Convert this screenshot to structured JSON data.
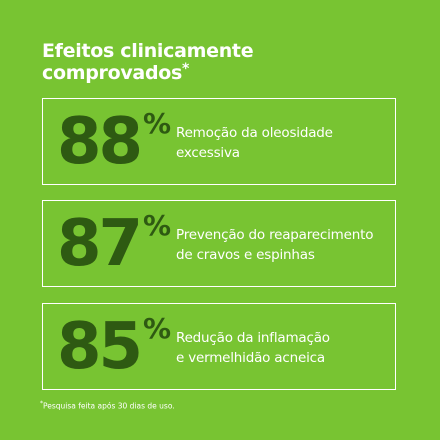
{
  "header": {
    "title_lines": [
      "Efeitos clinicamente",
      "comprovados"
    ],
    "title_mark": "*"
  },
  "stats": [
    {
      "value": 88,
      "unit": "%",
      "lines": [
        "Remoção da oleosidade",
        "excessiva"
      ]
    },
    {
      "value": 87,
      "unit": "%",
      "lines": [
        "Prevenção do reaparecimento",
        "de cravos e espinhas"
      ]
    },
    {
      "value": 85,
      "unit": "%",
      "lines": [
        "Redução da inflamação",
        "e vermelhidão acneica"
      ]
    }
  ],
  "footer": {
    "mark": "*",
    "note": "Pesquisa feita após 30 dias de uso."
  }
}
